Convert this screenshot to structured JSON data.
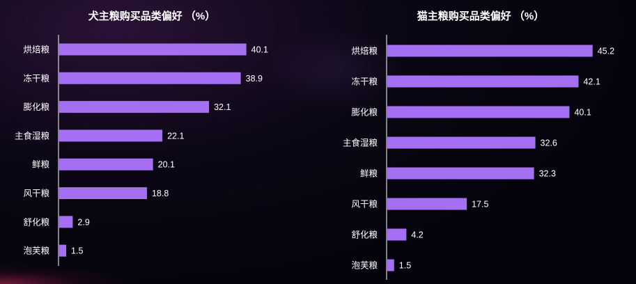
{
  "colors": {
    "bar": "#a46ff2",
    "axis": "#ffffff"
  },
  "chart_data": [
    {
      "type": "bar",
      "orientation": "horizontal",
      "title": "犬主粮购买品类偏好 （%）",
      "categories": [
        "烘焙粮",
        "冻干粮",
        "膨化粮",
        "主食湿粮",
        "鲜粮",
        "风干粮",
        "舒化粮",
        "泡芙粮"
      ],
      "values": [
        40.1,
        38.9,
        32.1,
        22.1,
        20.1,
        18.8,
        2.9,
        1.5
      ],
      "value_labels": [
        "40.1",
        "38.9",
        "32.1",
        "22.1",
        "20.1",
        "18.8",
        "2.9",
        "1.5"
      ],
      "xlim": [
        0,
        45
      ],
      "grid": false,
      "legend": "none"
    },
    {
      "type": "bar",
      "orientation": "horizontal",
      "title": "猫主粮购买品类偏好 （%）",
      "categories": [
        "烘焙粮",
        "冻干粮",
        "膨化粮",
        "主食湿粮",
        "鲜粮",
        "风干粮",
        "舒化粮",
        "泡芙粮"
      ],
      "values": [
        45.2,
        42.1,
        40.1,
        32.6,
        32.3,
        17.5,
        4.2,
        1.5
      ],
      "value_labels": [
        "45.2",
        "42.1",
        "40.1",
        "32.6",
        "32.3",
        "17.5",
        "4.2",
        "1.5"
      ],
      "xlim": [
        0,
        53
      ],
      "grid": false,
      "legend": "none"
    }
  ]
}
